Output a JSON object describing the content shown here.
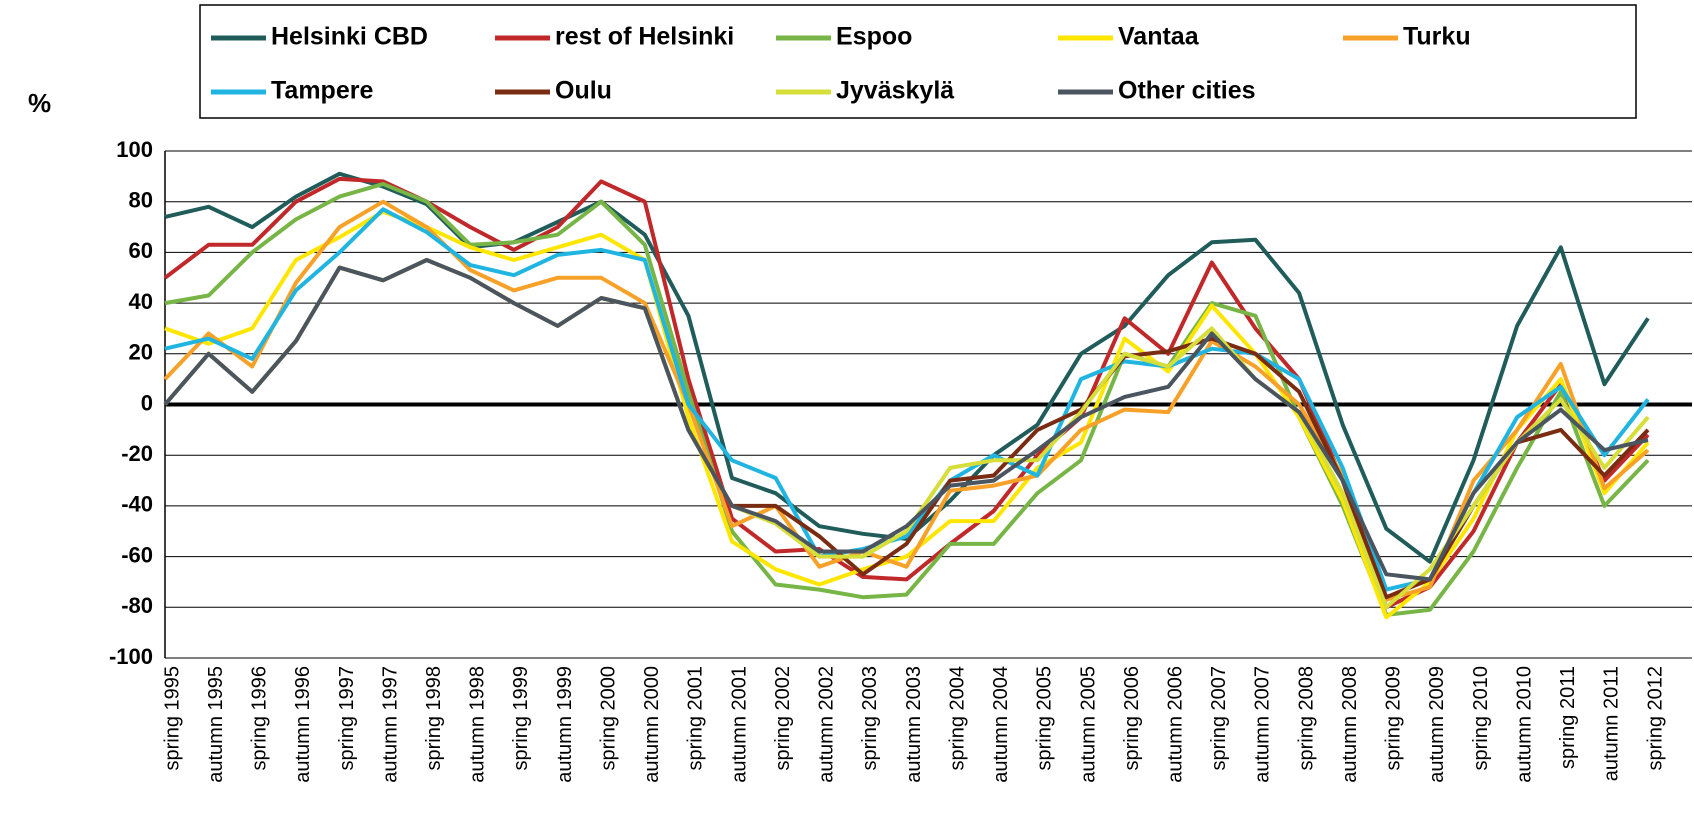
{
  "chart_data": {
    "type": "line",
    "y_label": "%",
    "categories": [
      "spring 1995",
      "autumn 1995",
      "spring 1996",
      "autumn 1996",
      "spring 1997",
      "autumn 1997",
      "spring 1998",
      "autumn 1998",
      "spring 1999",
      "autumn 1999",
      "spring 2000",
      "autumn 2000",
      "spring 2001",
      "autumn 2001",
      "spring 2002",
      "autumn 2002",
      "spring 2003",
      "autumn 2003",
      "spring 2004",
      "autumn 2004",
      "spring 2005",
      "autumn 2005",
      "spring 2006",
      "autumn 2006",
      "spring 2007",
      "autumn 2007",
      "spring 2008",
      "autumn 2008",
      "spring 2009",
      "autumn 2009",
      "spring 2010",
      "autumn 2010",
      "spring 2011",
      "autumn 2011",
      "spring 2012"
    ],
    "series": [
      {
        "name": "Helsinki CBD",
        "color": "#1f5c5a",
        "values": [
          74,
          78,
          70,
          82,
          91,
          86,
          79,
          62,
          64,
          72,
          80,
          67,
          35,
          -29,
          -35,
          -48,
          -51,
          -53,
          -38,
          -20,
          -8,
          20,
          31,
          51,
          64,
          65,
          44,
          -8,
          -49,
          -62,
          -22,
          31,
          62,
          8,
          34
        ]
      },
      {
        "name": "rest of Helsinki",
        "color": "#c0282a",
        "values": [
          50,
          63,
          63,
          80,
          89,
          88,
          80,
          70,
          61,
          70,
          88,
          80,
          10,
          -45,
          -58,
          -57,
          -68,
          -69,
          -55,
          -42,
          -20,
          -5,
          34,
          20,
          56,
          30,
          10,
          -30,
          -80,
          -72,
          -50,
          -15,
          8,
          -30,
          -12
        ]
      },
      {
        "name": "Espoo",
        "color": "#77b547",
        "values": [
          40,
          43,
          60,
          73,
          82,
          87,
          80,
          63,
          64,
          67,
          80,
          63,
          5,
          -50,
          -71,
          -73,
          -76,
          -75,
          -55,
          -55,
          -35,
          -22,
          20,
          15,
          40,
          35,
          -5,
          -40,
          -83,
          -81,
          -58,
          -25,
          5,
          -40,
          -22
        ]
      },
      {
        "name": "Vantaa",
        "color": "#ffe600",
        "values": [
          30,
          24,
          30,
          57,
          66,
          76,
          70,
          62,
          57,
          62,
          67,
          57,
          -5,
          -54,
          -65,
          -71,
          -65,
          -60,
          -46,
          -46,
          -25,
          -15,
          26,
          13,
          39,
          20,
          -5,
          -38,
          -84,
          -70,
          -45,
          -10,
          10,
          -35,
          -15
        ]
      },
      {
        "name": "Turku",
        "color": "#f7a128",
        "values": [
          10,
          28,
          15,
          48,
          70,
          80,
          70,
          53,
          45,
          50,
          50,
          40,
          0,
          -48,
          -40,
          -64,
          -58,
          -64,
          -34,
          -32,
          -28,
          -10,
          -2,
          -3,
          25,
          15,
          0,
          -28,
          -77,
          -72,
          -30,
          -10,
          16,
          -33,
          -18
        ]
      },
      {
        "name": "Tampere",
        "color": "#1fb5e0",
        "values": [
          22,
          26,
          18,
          45,
          60,
          77,
          68,
          55,
          51,
          59,
          61,
          57,
          0,
          -22,
          -29,
          -60,
          -57,
          -52,
          -30,
          -20,
          -28,
          10,
          17,
          15,
          22,
          20,
          10,
          -25,
          -73,
          -69,
          -35,
          -5,
          7,
          -20,
          2
        ]
      },
      {
        "name": "Oulu",
        "color": "#7a2c12",
        "values": [
          0,
          20,
          5,
          25,
          54,
          49,
          57,
          50,
          40,
          31,
          42,
          38,
          -10,
          -40,
          -40,
          -52,
          -67,
          -55,
          -30,
          -28,
          -10,
          -2,
          19,
          21,
          26,
          20,
          5,
          -30,
          -76,
          -69,
          -40,
          -15,
          -10,
          -28,
          -10
        ]
      },
      {
        "name": "Jyväskylä",
        "color": "#d6de3a",
        "values": [
          0,
          20,
          5,
          25,
          54,
          49,
          57,
          50,
          40,
          31,
          42,
          38,
          -10,
          -40,
          -47,
          -60,
          -60,
          -50,
          -25,
          -22,
          -22,
          -3,
          20,
          15,
          30,
          10,
          -3,
          -35,
          -80,
          -65,
          -40,
          -15,
          2,
          -25,
          -5
        ]
      },
      {
        "name": "Other cities",
        "color": "#4a5560",
        "values": [
          0,
          20,
          5,
          25,
          54,
          49,
          57,
          50,
          40,
          31,
          42,
          38,
          -10,
          -40,
          -46,
          -58,
          -58,
          -48,
          -32,
          -30,
          -18,
          -5,
          3,
          7,
          28,
          10,
          -3,
          -30,
          -67,
          -69,
          -35,
          -15,
          -2,
          -18,
          -14
        ]
      }
    ],
    "ylim": [
      -100,
      100
    ],
    "yticks": [
      -100,
      -80,
      -60,
      -40,
      -20,
      0,
      20,
      40,
      60,
      80,
      100
    ],
    "grid": true,
    "legend": "top"
  }
}
